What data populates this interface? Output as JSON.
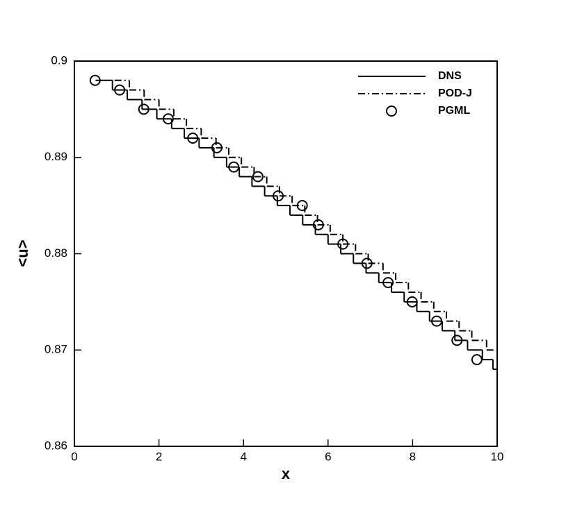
{
  "chart_data": {
    "type": "step",
    "xlabel": "x",
    "ylabel": "<u>",
    "xlim": [
      0,
      10
    ],
    "ylim": [
      0.86,
      0.9
    ],
    "xticks": [
      0,
      2,
      4,
      6,
      8,
      10
    ],
    "yticks": [
      0.86,
      0.87,
      0.88,
      0.89,
      0.9
    ],
    "legend": "upper right",
    "series": [
      {
        "name": "DNS",
        "color": "#000000",
        "style": "solid",
        "x": [
          0.5,
          0.9,
          1.25,
          1.6,
          1.95,
          2.3,
          2.6,
          2.95,
          3.3,
          3.6,
          3.9,
          4.2,
          4.5,
          4.8,
          5.1,
          5.4,
          5.7,
          6.0,
          6.3,
          6.6,
          6.9,
          7.2,
          7.5,
          7.8,
          8.1,
          8.4,
          8.7,
          9.0,
          9.3,
          9.65,
          9.9
        ],
        "values": [
          0.898,
          0.897,
          0.896,
          0.895,
          0.894,
          0.893,
          0.892,
          0.891,
          0.89,
          0.889,
          0.888,
          0.887,
          0.886,
          0.885,
          0.884,
          0.883,
          0.882,
          0.881,
          0.88,
          0.879,
          0.878,
          0.877,
          0.876,
          0.875,
          0.874,
          0.873,
          0.872,
          0.871,
          0.87,
          0.869,
          0.868
        ]
      },
      {
        "name": "POD-J",
        "color": "#000000",
        "style": "dashdot",
        "x": [
          0.95,
          1.3,
          1.65,
          2.0,
          2.35,
          2.65,
          3.0,
          3.35,
          3.65,
          3.95,
          4.25,
          4.55,
          4.85,
          5.15,
          5.45,
          5.75,
          6.05,
          6.35,
          6.65,
          6.95,
          7.3,
          7.6,
          7.9,
          8.2,
          8.5,
          8.8,
          9.1,
          9.4,
          9.75
        ],
        "values": [
          0.898,
          0.897,
          0.896,
          0.895,
          0.894,
          0.893,
          0.892,
          0.891,
          0.89,
          0.889,
          0.888,
          0.887,
          0.886,
          0.885,
          0.884,
          0.883,
          0.882,
          0.881,
          0.88,
          0.879,
          0.878,
          0.877,
          0.876,
          0.875,
          0.874,
          0.873,
          0.872,
          0.871,
          0.87
        ]
      },
      {
        "name": "PGML",
        "color": "#000000",
        "style": "circle",
        "x": [
          0.49,
          1.07,
          1.64,
          2.22,
          2.8,
          3.37,
          3.77,
          4.34,
          4.82,
          5.39,
          5.77,
          6.35,
          6.92,
          7.42,
          7.99,
          8.57,
          9.05,
          9.52
        ],
        "values": [
          0.898,
          0.897,
          0.895,
          0.894,
          0.892,
          0.891,
          0.889,
          0.888,
          0.886,
          0.885,
          0.883,
          0.881,
          0.879,
          0.877,
          0.875,
          0.873,
          0.871,
          0.869
        ]
      }
    ]
  }
}
